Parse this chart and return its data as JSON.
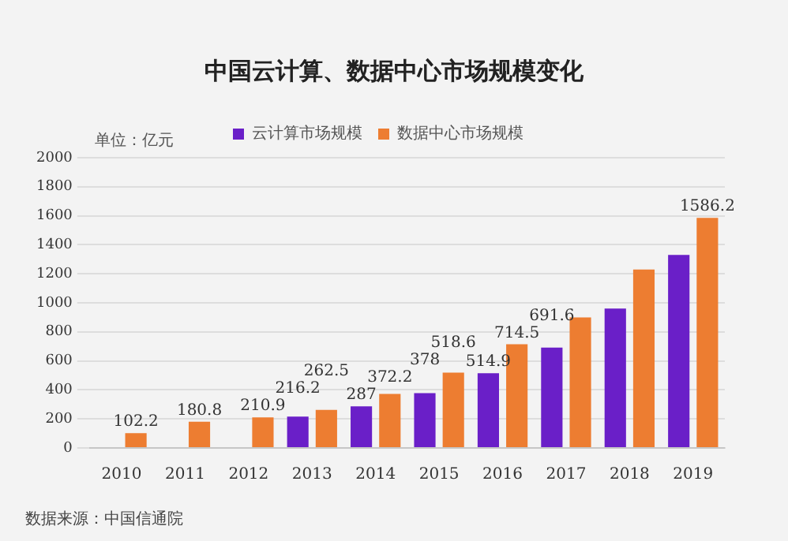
{
  "chart_data": {
    "type": "bar",
    "title": "中国云计算、数据中心市场规模变化",
    "ylabel": "单位：亿元",
    "categories": [
      "2010",
      "2011",
      "2012",
      "2013",
      "2014",
      "2015",
      "2016",
      "2017",
      "2018",
      "2019"
    ],
    "series": [
      {
        "name": "云计算市场规模",
        "color": "#6a1fc8",
        "values": [
          null,
          null,
          null,
          216.2,
          287,
          378,
          514.9,
          691.6,
          960,
          1330
        ],
        "value_labels": [
          null,
          null,
          null,
          "216.2",
          "287",
          "378",
          "514.9",
          "691.6",
          null,
          null
        ]
      },
      {
        "name": "数据中心市场规模",
        "color": "#ed7d31",
        "values": [
          102.2,
          180.8,
          210.9,
          262.5,
          372.2,
          518.6,
          714.5,
          900,
          1230,
          1586.2
        ],
        "value_labels": [
          "102.2",
          "180.8",
          "210.9",
          "262.5",
          "372.2",
          "518.6",
          "714.5",
          null,
          null,
          "1586.2"
        ]
      }
    ],
    "ylim": [
      0,
      2000
    ],
    "yticks": [
      0,
      200,
      400,
      600,
      800,
      1000,
      1200,
      1400,
      1600,
      1800,
      2000
    ],
    "grid": "y",
    "legend": "top",
    "annotations": [
      "数据来源：中国信通院"
    ]
  }
}
